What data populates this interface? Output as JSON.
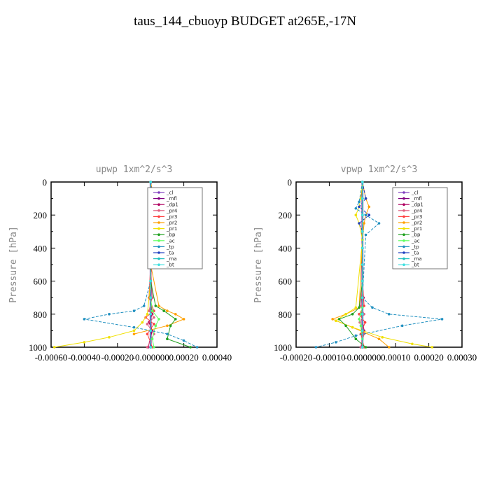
{
  "title": "taus_144_cbuoyp  BUDGET at265E,-17N",
  "chart_data": [
    {
      "type": "line",
      "title": "upwp   1xm^2/s^3",
      "ylabel": "Pressure [hPa]",
      "xlim": [
        -0.0006,
        0.0004
      ],
      "ylim": [
        1000,
        0
      ],
      "xticks": [
        "-0.00060",
        "-0.00040",
        "-0.00020",
        "-0.000000",
        "0.00020",
        "0.00040"
      ],
      "yticks": [
        "0",
        "200",
        "400",
        "600",
        "800",
        "1000"
      ],
      "legend_position": "top-right",
      "series": [
        {
          "name": "_cl",
          "color": "#8040c0",
          "marker": "o",
          "x": [
            0,
            0,
            0,
            0,
            0,
            0,
            0,
            0,
            0,
            0,
            0
          ],
          "y": [
            0,
            100,
            200,
            300,
            400,
            500,
            600,
            700,
            800,
            900,
            1000
          ]
        },
        {
          "name": "_mfl",
          "color": "#800080",
          "marker": "s",
          "x": [
            0,
            0,
            0,
            0,
            0,
            0,
            0,
            0,
            0,
            0,
            0
          ],
          "y": [
            0,
            100,
            200,
            300,
            400,
            500,
            600,
            700,
            800,
            900,
            1000
          ]
        },
        {
          "name": "_dp1",
          "color": "#b00060",
          "marker": "s",
          "x": [
            0,
            0,
            0,
            0,
            0,
            0,
            0,
            -5e-06,
            1e-05,
            -1e-05,
            1e-05,
            -1.5e-05
          ],
          "y": [
            0,
            100,
            200,
            300,
            400,
            500,
            600,
            700,
            800,
            850,
            900,
            1000
          ]
        },
        {
          "name": "_pr4",
          "color": "#e06080",
          "marker": "x",
          "x": [
            0,
            0,
            0,
            0,
            0,
            0,
            1e-05,
            -1e-05,
            2e-05,
            -2e-05,
            2e-05,
            -2e-05
          ],
          "y": [
            0,
            100,
            200,
            300,
            400,
            500,
            700,
            780,
            820,
            860,
            920,
            1000
          ]
        },
        {
          "name": "_pr3",
          "color": "#ff4040",
          "marker": "v",
          "x": [
            0,
            0,
            0,
            0,
            0,
            0,
            -1e-05,
            2e-05,
            -3e-05,
            2e-05,
            -2e-05,
            1e-05
          ],
          "y": [
            0,
            100,
            200,
            300,
            400,
            500,
            700,
            780,
            820,
            860,
            920,
            1000
          ]
        },
        {
          "name": "_pr2",
          "color": "#ffa000",
          "marker": "^",
          "x": [
            0,
            2e-05,
            1e-05,
            1e-05,
            0,
            0,
            5e-05,
            0.0001,
            0.00015,
            0.0002,
            0.0001,
            -0.0001
          ],
          "y": [
            0,
            100,
            150,
            200,
            300,
            500,
            750,
            780,
            800,
            830,
            870,
            920
          ]
        },
        {
          "name": "_pr1",
          "color": "#f0e000",
          "marker": "o",
          "x": [
            0,
            5e-06,
            5e-06,
            5e-06,
            0,
            0,
            -2e-05,
            -5e-05,
            -0.0001,
            -0.00025,
            -0.0004,
            -0.00058
          ],
          "y": [
            0,
            100,
            200,
            300,
            400,
            600,
            800,
            850,
            900,
            940,
            970,
            1000
          ]
        },
        {
          "name": "_bp",
          "color": "#20a020",
          "marker": "+",
          "x": [
            0,
            0,
            0,
            0,
            0,
            0,
            3e-05,
            8e-05,
            0.00015,
            0.00012,
            0.0001,
            0.00024
          ],
          "y": [
            0,
            100,
            200,
            300,
            400,
            600,
            750,
            780,
            830,
            870,
            950,
            1000
          ]
        },
        {
          "name": "_ac",
          "color": "#60ff60",
          "marker": "o",
          "x": [
            0,
            0,
            0,
            0,
            0,
            0,
            0,
            1e-05,
            5e-05,
            3e-05,
            1e-05,
            2e-05
          ],
          "y": [
            0,
            100,
            200,
            300,
            400,
            600,
            700,
            780,
            830,
            870,
            950,
            1000
          ]
        },
        {
          "name": "_tp",
          "color": "#2090c0",
          "marker": "*",
          "x": [
            0,
            5e-06,
            -1e-05,
            0,
            0,
            0,
            -4e-05,
            -0.0001,
            -0.00025,
            -0.0004,
            -0.0001,
            0.0001,
            0.0002,
            0.00028
          ],
          "y": [
            0,
            120,
            200,
            250,
            300,
            600,
            750,
            780,
            800,
            830,
            880,
            920,
            960,
            1000
          ]
        },
        {
          "name": "_ta",
          "color": "#2040c0",
          "marker": ">",
          "x": [
            0,
            1e-05,
            5e-06,
            -1e-05,
            1e-05,
            0,
            0,
            0,
            0,
            0,
            0
          ],
          "y": [
            0,
            100,
            130,
            200,
            250,
            300,
            500,
            700,
            800,
            900,
            1000
          ]
        },
        {
          "name": "_ma",
          "color": "#20c0c0",
          "marker": "-",
          "x": [
            0,
            0,
            0,
            0,
            0,
            0,
            0,
            0,
            0,
            0,
            0
          ],
          "y": [
            0,
            100,
            200,
            300,
            400,
            500,
            600,
            700,
            800,
            900,
            1000
          ]
        },
        {
          "name": "_bt",
          "color": "#40e0e0",
          "marker": "o",
          "x": [
            0,
            0,
            0,
            0,
            0,
            0,
            0,
            0,
            0,
            0,
            0
          ],
          "y": [
            0,
            100,
            200,
            300,
            400,
            500,
            600,
            700,
            800,
            900,
            1000
          ]
        }
      ]
    },
    {
      "type": "line",
      "title": "vpwp   1xm^2/s^3",
      "ylabel": "Pressure [hPa]",
      "xlim": [
        -0.0002,
        0.0003
      ],
      "ylim": [
        1000,
        0
      ],
      "xticks": [
        "-0.00020",
        "-0.00010",
        "-0.000000",
        "0.00010",
        "0.00020",
        "0.00030"
      ],
      "yticks": [
        "0",
        "200",
        "400",
        "600",
        "800",
        "1000"
      ],
      "legend_position": "top-right",
      "series": [
        {
          "name": "_cl",
          "color": "#8040c0",
          "marker": "o",
          "x": [
            0,
            0,
            0,
            0,
            0,
            0,
            0,
            0,
            0,
            0,
            0
          ],
          "y": [
            0,
            100,
            200,
            300,
            400,
            500,
            600,
            700,
            800,
            900,
            1000
          ]
        },
        {
          "name": "_mfl",
          "color": "#800080",
          "marker": "s",
          "x": [
            0,
            0,
            0,
            0,
            0,
            0,
            0,
            0,
            0,
            0,
            0
          ],
          "y": [
            0,
            100,
            200,
            300,
            400,
            500,
            600,
            700,
            800,
            900,
            1000
          ]
        },
        {
          "name": "_dp1",
          "color": "#b00060",
          "marker": "s",
          "x": [
            0,
            0,
            0,
            0,
            0,
            0,
            0,
            3e-06,
            -3e-06,
            5e-06,
            -5e-06
          ],
          "y": [
            0,
            100,
            200,
            300,
            400,
            500,
            600,
            700,
            800,
            900,
            1000
          ]
        },
        {
          "name": "_pr4",
          "color": "#e06080",
          "marker": "x",
          "x": [
            0,
            0,
            0,
            0,
            0,
            0,
            -5e-06,
            5e-06,
            -8e-06,
            5e-06,
            -5e-06
          ],
          "y": [
            0,
            100,
            200,
            300,
            400,
            600,
            750,
            800,
            850,
            920,
            1000
          ]
        },
        {
          "name": "_pr3",
          "color": "#ff4040",
          "marker": "v",
          "x": [
            0,
            0,
            0,
            0,
            0,
            0,
            5e-06,
            -1e-05,
            8e-06,
            -5e-06,
            5e-06
          ],
          "y": [
            0,
            100,
            200,
            300,
            400,
            600,
            750,
            800,
            850,
            920,
            1000
          ]
        },
        {
          "name": "_pr2",
          "color": "#ffa000",
          "marker": "^",
          "x": [
            0,
            1e-05,
            2e-05,
            1e-05,
            5e-06,
            0,
            -1e-05,
            -5e-05,
            -9e-05,
            -3e-05,
            5e-05,
            8e-05
          ],
          "y": [
            0,
            100,
            150,
            200,
            250,
            350,
            760,
            800,
            830,
            880,
            950,
            1000
          ]
        },
        {
          "name": "_pr1",
          "color": "#f0e000",
          "marker": "o",
          "x": [
            0,
            -5e-06,
            -1e-05,
            -2e-05,
            -1e-05,
            0,
            -2e-05,
            -5e-05,
            -8e-05,
            -3e-05,
            6e-05,
            0.00015,
            0.00021
          ],
          "y": [
            0,
            100,
            150,
            200,
            250,
            350,
            760,
            800,
            840,
            880,
            940,
            980,
            1000
          ]
        },
        {
          "name": "_bp",
          "color": "#20a020",
          "marker": "+",
          "x": [
            0,
            0,
            0,
            0,
            0,
            0,
            -1e-05,
            -3e-05,
            -7e-05,
            -5e-05,
            -2e-05,
            1e-05
          ],
          "y": [
            0,
            100,
            200,
            300,
            400,
            600,
            760,
            800,
            830,
            870,
            950,
            1000
          ]
        },
        {
          "name": "_ac",
          "color": "#60ff60",
          "marker": "o",
          "x": [
            0,
            0,
            0,
            0,
            0,
            0,
            0,
            -5e-06,
            -1e-05,
            -5e-06,
            0,
            0
          ],
          "y": [
            0,
            100,
            200,
            300,
            400,
            600,
            760,
            800,
            830,
            870,
            950,
            1000
          ]
        },
        {
          "name": "_tp",
          "color": "#2090c0",
          "marker": "*",
          "x": [
            0,
            -1e-05,
            -2e-05,
            1e-05,
            5e-05,
            1e-05,
            0,
            3e-05,
            8e-05,
            0.00024,
            0.00012,
            -2e-05,
            -8e-05,
            -0.00014
          ],
          "y": [
            0,
            120,
            160,
            200,
            250,
            320,
            700,
            760,
            800,
            830,
            870,
            930,
            970,
            1000
          ]
        },
        {
          "name": "_ta",
          "color": "#2040c0",
          "marker": ">",
          "x": [
            0,
            1e-05,
            -1e-05,
            2e-05,
            -1e-05,
            0,
            0,
            0,
            0,
            0,
            0
          ],
          "y": [
            0,
            100,
            150,
            200,
            250,
            300,
            500,
            700,
            800,
            900,
            1000
          ]
        },
        {
          "name": "_ma",
          "color": "#20c0c0",
          "marker": "-",
          "x": [
            0,
            0,
            0,
            0,
            0,
            0,
            0,
            0,
            0,
            0,
            0
          ],
          "y": [
            0,
            100,
            200,
            300,
            400,
            500,
            600,
            700,
            800,
            900,
            1000
          ]
        },
        {
          "name": "_bt",
          "color": "#40e0e0",
          "marker": "o",
          "x": [
            0,
            0,
            0,
            0,
            0,
            0,
            0,
            0,
            0,
            0,
            0
          ],
          "y": [
            0,
            100,
            200,
            300,
            400,
            500,
            600,
            700,
            800,
            900,
            1000
          ]
        }
      ]
    }
  ]
}
